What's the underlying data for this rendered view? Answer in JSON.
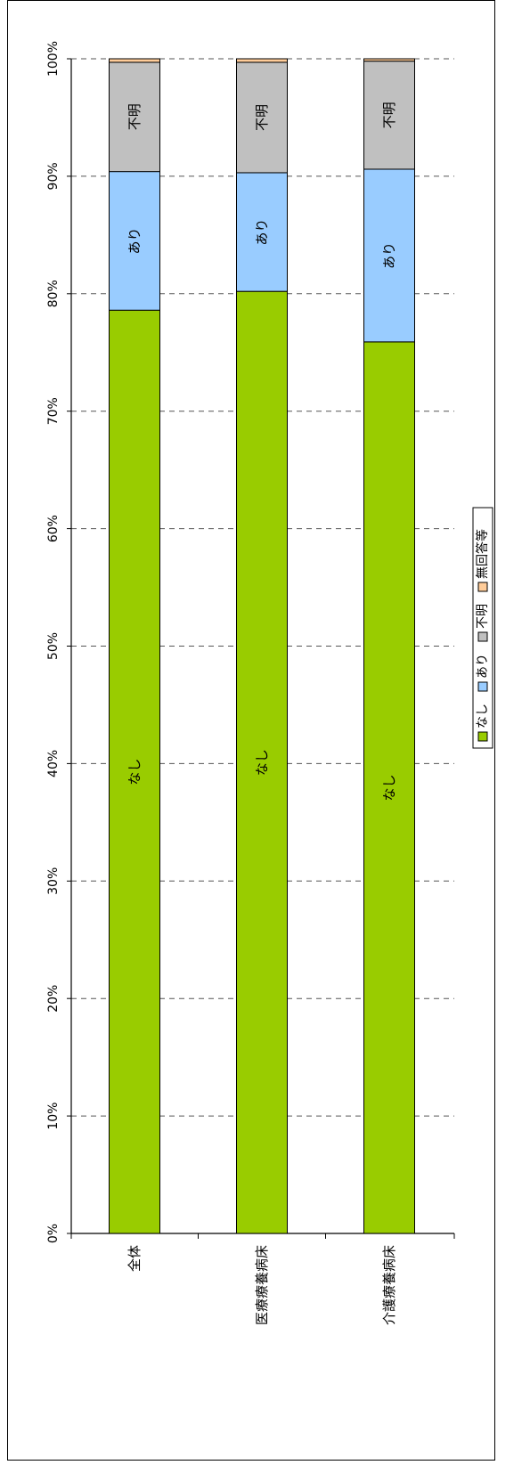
{
  "chart_data": {
    "type": "bar",
    "orientation": "horizontal-stacked-percent",
    "title": "",
    "xlabel": "",
    "ylabel": "",
    "xlim": [
      0,
      100
    ],
    "grid": true,
    "legend_position": "right",
    "ticks": [
      "0%",
      "10%",
      "20%",
      "30%",
      "40%",
      "50%",
      "60%",
      "70%",
      "80%",
      "90%",
      "100%"
    ],
    "categories": [
      "全体",
      "医療療養病床",
      "介護療養病床"
    ],
    "series": [
      {
        "name": "なし",
        "color": "#99cc00",
        "values": [
          78.6,
          80.2,
          75.9
        ]
      },
      {
        "name": "あり",
        "color": "#99ccff",
        "values": [
          11.8,
          10.1,
          14.7
        ]
      },
      {
        "name": "不明",
        "color": "#c0c0c0",
        "values": [
          9.3,
          9.4,
          9.2
        ]
      },
      {
        "name": "無回答等",
        "color": "#ffcc99",
        "values": [
          0.3,
          0.3,
          0.2
        ]
      }
    ],
    "segment_labels": [
      [
        "なし",
        "あり",
        "不明",
        ""
      ],
      [
        "なし",
        "あり",
        "不明",
        ""
      ],
      [
        "なし",
        "あり",
        "不明",
        ""
      ]
    ]
  }
}
